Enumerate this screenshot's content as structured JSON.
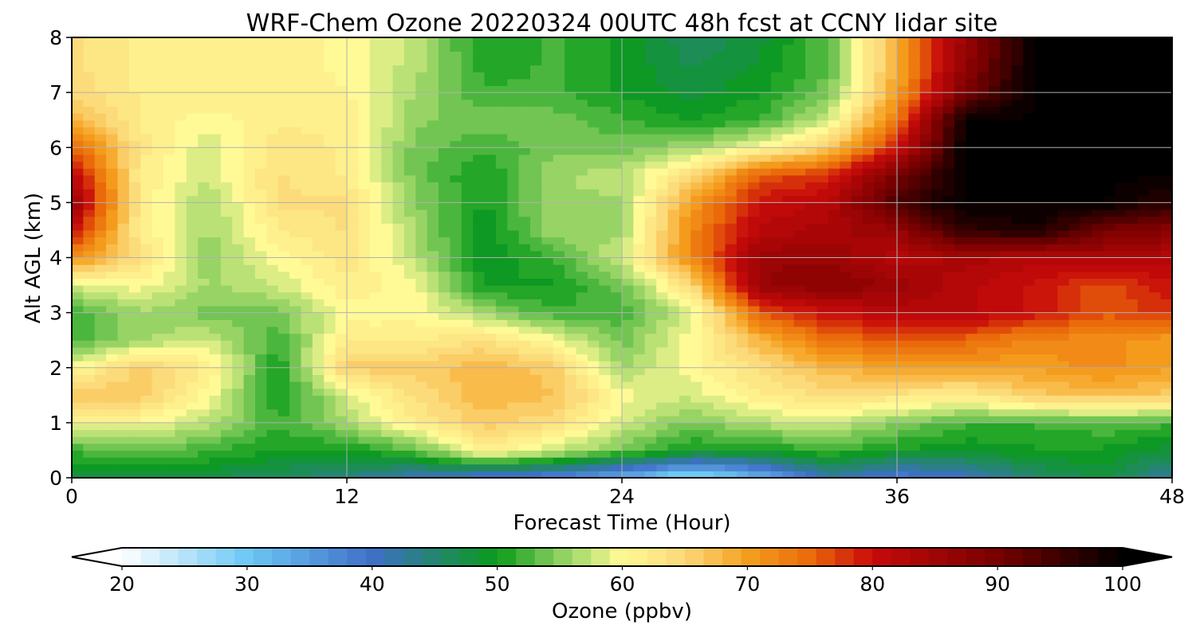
{
  "chart_data": {
    "type": "heatmap",
    "title": "WRF-Chem Ozone  20220324 00UTC 48h fcst at CCNY lidar site",
    "xlabel": "Forecast Time (Hour)",
    "ylabel": "Alt AGL (km)",
    "xlim": [
      0,
      48
    ],
    "ylim": [
      0,
      8
    ],
    "x_ticks": [
      "0",
      "12",
      "24",
      "36",
      "48"
    ],
    "y_ticks": [
      "0",
      "1",
      "2",
      "3",
      "4",
      "5",
      "6",
      "7",
      "8"
    ],
    "grid": true,
    "colorbar": {
      "label": "Ozone  (ppbv)",
      "range": [
        20,
        100
      ],
      "ticks": [
        "20",
        "30",
        "40",
        "50",
        "60",
        "70",
        "80",
        "90",
        "100"
      ],
      "extend": "both",
      "color_stops": [
        {
          "value": 20,
          "color": "#ffffff"
        },
        {
          "value": 30,
          "color": "#6ec8f5"
        },
        {
          "value": 40,
          "color": "#3f6fc8"
        },
        {
          "value": 50,
          "color": "#0a9b1a"
        },
        {
          "value": 55,
          "color": "#8cd060"
        },
        {
          "value": 60,
          "color": "#fffa96"
        },
        {
          "value": 65,
          "color": "#fcd878"
        },
        {
          "value": 70,
          "color": "#f5a01e"
        },
        {
          "value": 75,
          "color": "#ea6a0a"
        },
        {
          "value": 80,
          "color": "#c80a0a"
        },
        {
          "value": 90,
          "color": "#780000"
        },
        {
          "value": 100,
          "color": "#000000"
        }
      ]
    },
    "x": [
      0,
      3,
      6,
      9,
      12,
      15,
      18,
      21,
      24,
      27,
      30,
      33,
      36,
      39,
      42,
      45,
      48
    ],
    "y": [
      0,
      0.5,
      1,
      1.5,
      2,
      2.5,
      3,
      3.5,
      4,
      4.5,
      5,
      5.5,
      6,
      6.5,
      7,
      7.5,
      8
    ],
    "z": [
      [
        48,
        48,
        47,
        46,
        44,
        41,
        38,
        37,
        33,
        26,
        32,
        42,
        38,
        40,
        45,
        48,
        42
      ],
      [
        52,
        54,
        52,
        50,
        50,
        53,
        62,
        58,
        54,
        50,
        50,
        52,
        50,
        49,
        50,
        50,
        48
      ],
      [
        60,
        60,
        57,
        52,
        56,
        62,
        66,
        64,
        58,
        54,
        57,
        58,
        55,
        52,
        52,
        53,
        52
      ],
      [
        67,
        66,
        60,
        50,
        58,
        64,
        68,
        67,
        60,
        58,
        62,
        64,
        63,
        62,
        66,
        67,
        66
      ],
      [
        60,
        66,
        62,
        50,
        66,
        66,
        68,
        66,
        56,
        60,
        64,
        68,
        70,
        70,
        70,
        72,
        70
      ],
      [
        52,
        56,
        58,
        52,
        62,
        62,
        64,
        60,
        54,
        60,
        68,
        74,
        76,
        75,
        72,
        72,
        70
      ],
      [
        52,
        56,
        54,
        54,
        60,
        60,
        56,
        52,
        52,
        58,
        76,
        80,
        82,
        82,
        80,
        76,
        78
      ],
      [
        58,
        60,
        56,
        58,
        62,
        60,
        50,
        50,
        54,
        64,
        86,
        88,
        86,
        82,
        80,
        76,
        80
      ],
      [
        72,
        64,
        55,
        60,
        63,
        57,
        49,
        52,
        58,
        72,
        86,
        86,
        82,
        84,
        82,
        84,
        82
      ],
      [
        80,
        62,
        56,
        62,
        64,
        56,
        49,
        56,
        56,
        72,
        82,
        84,
        86,
        96,
        98,
        90,
        88
      ],
      [
        86,
        62,
        56,
        64,
        64,
        55,
        50,
        56,
        56,
        70,
        80,
        82,
        94,
        100,
        100,
        100,
        96
      ],
      [
        82,
        62,
        58,
        64,
        62,
        54,
        50,
        56,
        57,
        64,
        76,
        78,
        90,
        100,
        100,
        100,
        100
      ],
      [
        76,
        63,
        58,
        63,
        62,
        54,
        52,
        54,
        54,
        56,
        60,
        66,
        80,
        100,
        100,
        100,
        100
      ],
      [
        68,
        62,
        60,
        62,
        62,
        55,
        54,
        54,
        52,
        50,
        52,
        58,
        74,
        100,
        100,
        100,
        100
      ],
      [
        65,
        62,
        62,
        62,
        61,
        56,
        52,
        52,
        50,
        48,
        50,
        54,
        70,
        90,
        100,
        100,
        100
      ],
      [
        64,
        62,
        61,
        62,
        60,
        57,
        51,
        52,
        50,
        47,
        49,
        53,
        69,
        87,
        100,
        100,
        100
      ],
      [
        64,
        62,
        61,
        62,
        60,
        57,
        50,
        52,
        50,
        46,
        48,
        53,
        69,
        86,
        100,
        100,
        100
      ]
    ]
  }
}
